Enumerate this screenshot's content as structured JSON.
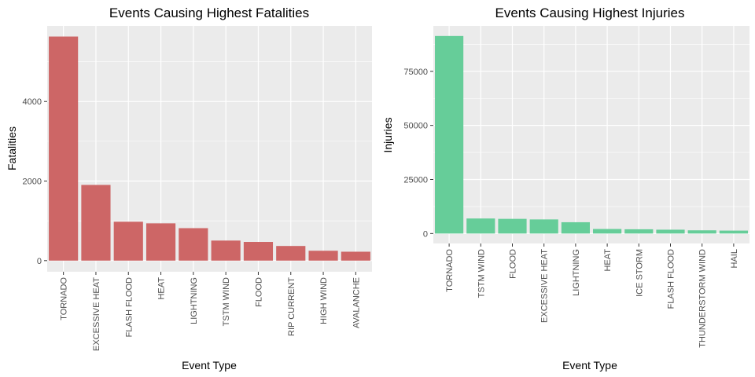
{
  "chart_data": [
    {
      "type": "bar",
      "title": "Events Causing Highest Fatalities",
      "xlabel": "Event Type",
      "ylabel": "Fatalities",
      "categories": [
        "TORNADO",
        "EXCESSIVE HEAT",
        "FLASH FLOOD",
        "HEAT",
        "LIGHTNING",
        "TSTM WIND",
        "FLOOD",
        "RIP CURRENT",
        "HIGH WIND",
        "AVALANCHE"
      ],
      "values": [
        5633,
        1903,
        978,
        937,
        816,
        504,
        470,
        368,
        248,
        224
      ],
      "yticks": [
        0,
        2000,
        4000
      ],
      "ytick_labels": [
        "0",
        "2000",
        "4000"
      ],
      "ylim": [
        -280,
        5900
      ],
      "grid": true,
      "bar_color": "#cd6666"
    },
    {
      "type": "bar",
      "title": "Events Causing Highest Injuries",
      "xlabel": "Event Type",
      "ylabel": "Injuries",
      "categories": [
        "TORNADO",
        "TSTM WIND",
        "FLOOD",
        "EXCESSIVE HEAT",
        "LIGHTNING",
        "HEAT",
        "ICE STORM",
        "FLASH FLOOD",
        "THUNDERSTORM WIND",
        "HAIL"
      ],
      "values": [
        91346,
        6957,
        6789,
        6525,
        5230,
        2100,
        1975,
        1777,
        1488,
        1361
      ],
      "yticks": [
        0,
        25000,
        50000,
        75000
      ],
      "ytick_labels": [
        "0",
        "25000",
        "50000",
        "75000"
      ],
      "ylim": [
        -4600,
        96000
      ],
      "grid": true,
      "bar_color": "#66cd99"
    }
  ]
}
